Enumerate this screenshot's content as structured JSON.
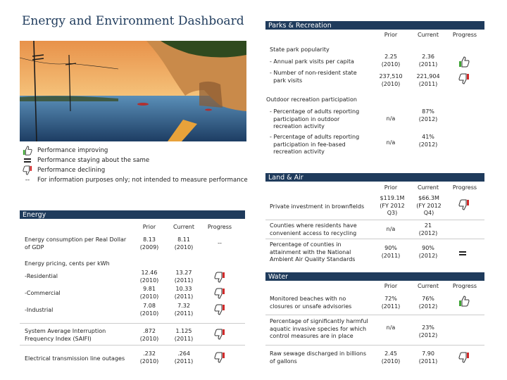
{
  "title": "Energy and Environment Dashboard",
  "legend": [
    {
      "icon": "thumbs-up-icon",
      "text": "Performance improving"
    },
    {
      "icon": "equals-icon",
      "text": "Performance staying about the same"
    },
    {
      "icon": "thumbs-down-icon",
      "text": "Performance declining"
    },
    {
      "icon": "dash-icon",
      "symbol": "--",
      "text": "For information purposes only; not intended to measure performance"
    }
  ],
  "cols": {
    "prior": "Prior",
    "current": "Current",
    "progress": "Progress"
  },
  "energy": {
    "header": "Energy",
    "consumption": {
      "label": "Energy consumption per Real Dollar of GDP",
      "prior": "8.13\n(2009)",
      "current": "8.11\n(2010)",
      "progress": "--"
    },
    "pricing_label": "Energy pricing, cents per kWh",
    "residential": {
      "label": "-Residential",
      "prior": "12.46\n(2010)",
      "current": "13.27\n(2011)"
    },
    "commercial": {
      "label": "-Commercial",
      "prior": "9.81\n(2010)",
      "current": "10.33\n(2011)"
    },
    "industrial": {
      "label": "-Industrial",
      "prior": "7.08\n(2010)",
      "current": "7.32\n(2011)"
    },
    "saifi": {
      "label": "System Average Interruption Frequency Index (SAIFI)",
      "prior": ".872\n(2010)",
      "current": "1.125\n(2011)"
    },
    "outages": {
      "label": "Electrical transmission line outages",
      "prior": ".232\n(2010)",
      "current": ".264\n(2011)"
    }
  },
  "parks": {
    "header": "Parks & Recreation",
    "popularity_label": "State park popularity",
    "visits": {
      "label": "- Annual park visits per capita",
      "prior": "2.25\n(2010)",
      "current": "2.36\n(2011)"
    },
    "nonres": {
      "label": "- Number of non-resident state\n  park visits",
      "prior": "237,510\n(2010)",
      "current": "221,904\n(2011)"
    },
    "outdoor_label": "Outdoor recreation participation",
    "outdoor": {
      "label": "- Percentage of adults reporting\n  participation in outdoor\n  recreation activity",
      "prior": "n/a",
      "current": "87%\n(2012)"
    },
    "feebased": {
      "label": "- Percentage of adults reporting\n  participation in fee-based\n  recreation activity",
      "prior": "n/a",
      "current": "41%\n(2012)"
    }
  },
  "land": {
    "header": "Land & Air",
    "brownfields": {
      "label": "Private investment in brownfields",
      "prior": "$119.1M\n(FY 2012\nQ3)",
      "current": "$66.3M\n(FY 2012\nQ4)"
    },
    "recycling": {
      "label": "Counties where residents have\nconvenient access to recycling",
      "prior": "n/a",
      "current": "21\n(2012)"
    },
    "airquality": {
      "label": "Percentage of counties in\nattainment with the National\nAmbient Air Quality Standards",
      "prior": "90%\n(2011)",
      "current": "90%\n(2012)"
    }
  },
  "water": {
    "header": "Water",
    "beaches": {
      "label": "Monitored beaches with no\nclosures or unsafe advisories",
      "prior": "72%\n(2011)",
      "current": "76%\n(2012)"
    },
    "invasive": {
      "label": "Percentage of significantly harmful\naquatic invasive species for which\ncontrol measures are in place",
      "prior": "n/a",
      "current": "23%\n(2012)"
    },
    "sewage": {
      "label": "Raw sewage discharged in billions\nof gallons",
      "prior": "2.45\n(2010)",
      "current": "7.90\n(2011)"
    }
  },
  "colors": {
    "navy": "#1f3b5c",
    "green": "#3fa535",
    "red": "#d12a2a"
  }
}
